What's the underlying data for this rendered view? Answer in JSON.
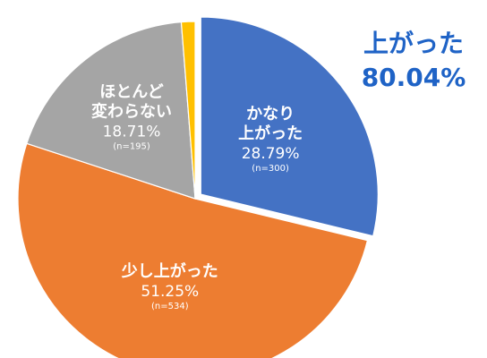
{
  "chart_data": {
    "type": "pie",
    "slices": [
      {
        "label_lines": [
          "かなり",
          "上がった"
        ],
        "value": 28.79,
        "percent_label": "28.79%",
        "n_label": "(n=300)",
        "color": "#4472c4",
        "exploded": true
      },
      {
        "label_lines": [
          "少し上がった"
        ],
        "value": 51.25,
        "percent_label": "51.25%",
        "n_label": "(n=534)",
        "color": "#ed7d31",
        "exploded": false
      },
      {
        "label_lines": [
          "ほとんど",
          "変わらない"
        ],
        "value": 18.71,
        "percent_label": "18.71%",
        "n_label": "(n=195)",
        "color": "#a5a5a5",
        "exploded": false
      },
      {
        "label_lines": [],
        "value": 1.25,
        "percent_label": "",
        "n_label": "",
        "color": "#ffc000",
        "exploded": false
      }
    ],
    "callout": {
      "title": "上がった",
      "value": "80.04%",
      "color": "#1f63c6"
    },
    "exploded_outline_color": "#1f3864"
  }
}
